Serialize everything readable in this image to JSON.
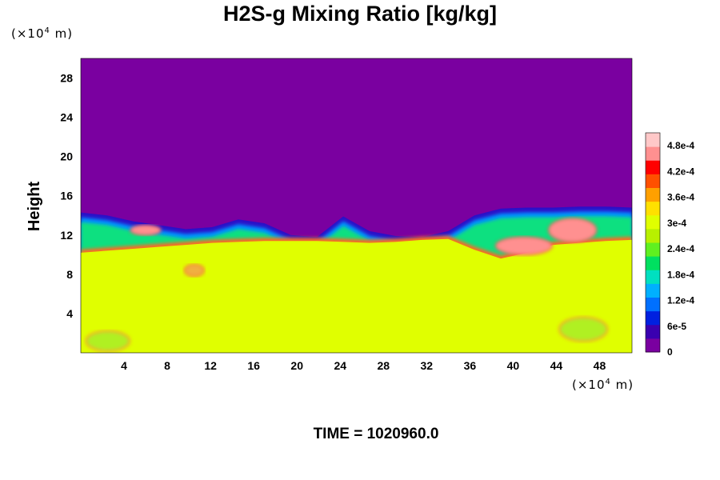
{
  "chart_data": {
    "type": "heatmap",
    "title": "H2S-g Mixing Ratio [kg/kg]",
    "ylabel": "Height",
    "x_unit": {
      "prefix": "(×10",
      "exp": "4",
      "suffix": " m)"
    },
    "y_unit": {
      "prefix": "(×10",
      "exp": "4",
      "suffix": " m)"
    },
    "xlim": [
      0,
      51
    ],
    "ylim": [
      0,
      30
    ],
    "x_ticks": [
      4,
      8,
      12,
      16,
      20,
      24,
      28,
      32,
      36,
      40,
      44,
      48
    ],
    "y_ticks": [
      4,
      8,
      12,
      16,
      20,
      24,
      28
    ],
    "colorbar": {
      "min": 0,
      "max": 0.00051,
      "labels": [
        {
          "text": "0",
          "value": 0
        },
        {
          "text": "6e-5",
          "value": 6e-05
        },
        {
          "text": "1.2e-4",
          "value": 0.00012
        },
        {
          "text": "1.8e-4",
          "value": 0.00018
        },
        {
          "text": "2.4e-4",
          "value": 0.00024
        },
        {
          "text": "3e-4",
          "value": 0.0003
        },
        {
          "text": "3.6e-4",
          "value": 0.00036
        },
        {
          "text": "4.2e-4",
          "value": 0.00042
        },
        {
          "text": "4.8e-4",
          "value": 0.00048
        }
      ],
      "colors": [
        "#7a00a0",
        "#3a00b0",
        "#0020e0",
        "#0070ff",
        "#00b0ff",
        "#00e0c0",
        "#00e060",
        "#60f020",
        "#b8f000",
        "#e0ff00",
        "#ffe000",
        "#ffa000",
        "#ff5000",
        "#ff0000",
        "#ff9090",
        "#ffc8c8"
      ]
    },
    "regions": {
      "upper_value": 0,
      "lower_value": 0.000345,
      "lower_color": "#e0ff00",
      "upper_color": "#7a00a0",
      "transition_top": [
        14.3,
        14.0,
        13.4,
        13.0,
        12.6,
        12.8,
        13.6,
        13.2,
        12.0,
        11.8,
        13.9,
        12.4,
        11.9,
        11.8,
        12.4,
        14.0,
        14.7,
        14.8,
        14.8,
        14.9,
        14.9,
        14.8
      ],
      "transition_bottom": [
        10.2,
        10.4,
        10.6,
        10.8,
        11.0,
        11.2,
        11.3,
        11.4,
        11.4,
        11.4,
        11.3,
        11.2,
        11.3,
        11.5,
        11.6,
        10.5,
        9.6,
        10.2,
        11.0,
        11.2,
        11.4,
        11.5
      ]
    }
  },
  "footer": {
    "time_label": "TIME = 1020960.0"
  }
}
